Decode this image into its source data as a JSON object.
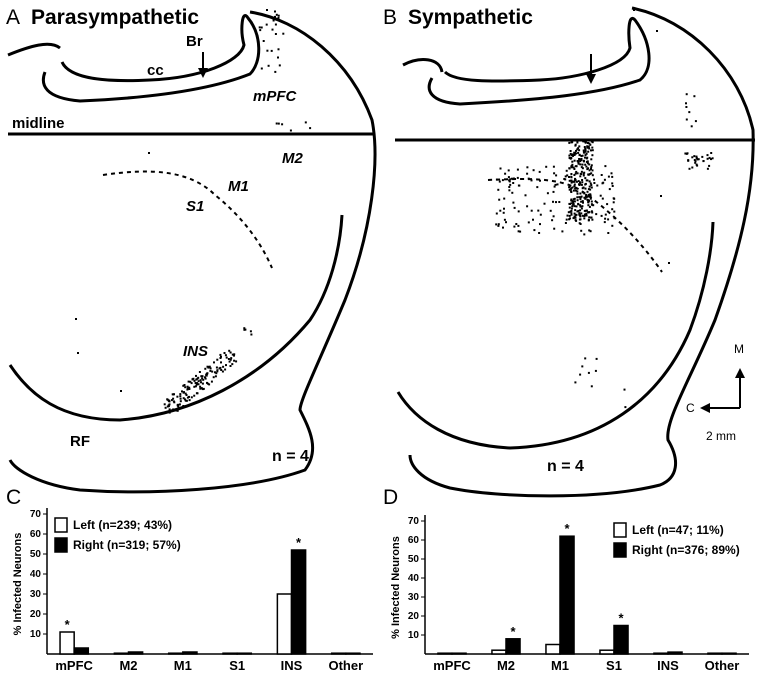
{
  "panels": {
    "A": {
      "letter": "A",
      "title": "Parasympathetic",
      "labels": {
        "br": "Br",
        "cc": "cc",
        "mpfc": "mPFC",
        "midline": "midline",
        "m2": "M2",
        "m1": "M1",
        "s1": "S1",
        "ins": "INS",
        "rf": "RF"
      },
      "n": "n = 4"
    },
    "B": {
      "letter": "B",
      "title": "Sympathetic",
      "n": "n = 4",
      "compass": {
        "m": "M",
        "c": "C",
        "scale": "2 mm"
      }
    }
  },
  "chart_data": [
    {
      "panel": "C",
      "type": "bar",
      "ylabel": "% Infected Neurons",
      "ylim": [
        0,
        70
      ],
      "yticks": [
        10,
        20,
        30,
        40,
        50,
        60,
        70
      ],
      "categories": [
        "mPFC",
        "M2",
        "M1",
        "S1",
        "INS",
        "Other"
      ],
      "series": [
        {
          "name": "Left (n=239; 43%)",
          "color": "#ffffff",
          "values": [
            11,
            0,
            0,
            0,
            30,
            0
          ]
        },
        {
          "name": "Right (n=319; 57%)",
          "color": "#000000",
          "values": [
            3,
            1,
            1,
            0,
            52,
            0
          ]
        }
      ],
      "significant": [
        {
          "category": "mPFC",
          "series": 0,
          "mark": "*"
        },
        {
          "category": "INS",
          "series": 1,
          "mark": "*"
        }
      ]
    },
    {
      "panel": "D",
      "type": "bar",
      "ylabel": "% Infected Neurons",
      "ylim": [
        0,
        70
      ],
      "yticks": [
        10,
        20,
        30,
        40,
        50,
        60,
        70
      ],
      "categories": [
        "mPFC",
        "M2",
        "M1",
        "S1",
        "INS",
        "Other"
      ],
      "series": [
        {
          "name": "Left (n=47; 11%)",
          "color": "#ffffff",
          "values": [
            0,
            2,
            5,
            2,
            0,
            0
          ]
        },
        {
          "name": "Right (n=376; 89%)",
          "color": "#000000",
          "values": [
            0,
            8,
            62,
            15,
            1,
            0
          ]
        }
      ],
      "significant": [
        {
          "category": "M2",
          "series": 1,
          "mark": "*"
        },
        {
          "category": "M1",
          "series": 1,
          "mark": "*"
        },
        {
          "category": "S1",
          "series": 1,
          "mark": "*"
        }
      ]
    }
  ]
}
